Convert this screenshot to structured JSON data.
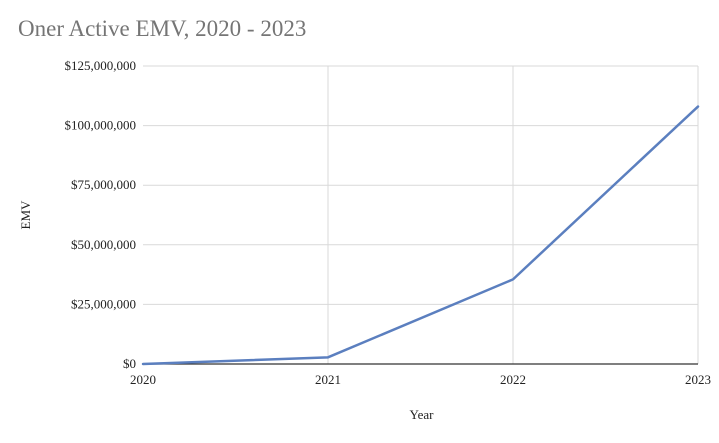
{
  "chart_data": {
    "type": "line",
    "title": "Oner Active EMV, 2020 - 2023",
    "xlabel": "Year",
    "ylabel": "EMV",
    "categories": [
      "2020",
      "2021",
      "2022",
      "2023"
    ],
    "series": [
      {
        "values": [
          0,
          2800000,
          35500000,
          108000000
        ],
        "color": "#5b7fbf"
      }
    ],
    "ylim": [
      0,
      125000000
    ],
    "yticks": [
      0,
      25000000,
      50000000,
      75000000,
      100000000,
      125000000
    ],
    "ytick_labels": [
      "$0",
      "$25,000,000",
      "$50,000,000",
      "$75,000,000",
      "$100,000,000",
      "$125,000,000"
    ],
    "grid": true,
    "legend": "none"
  }
}
